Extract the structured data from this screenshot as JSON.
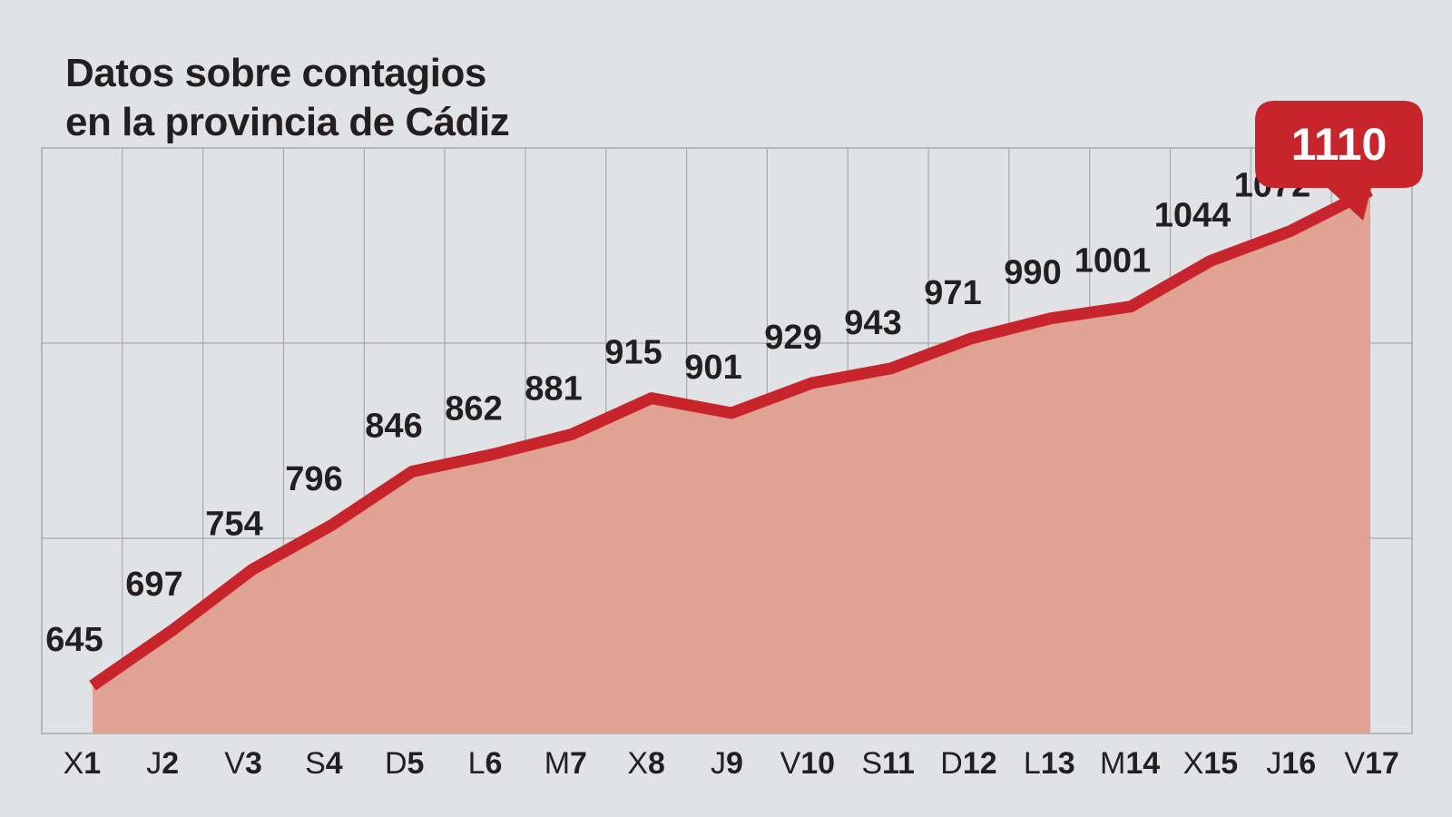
{
  "chart_data": {
    "type": "area",
    "title_lines": [
      "Datos sobre contagios",
      "en la provincia de Cádiz"
    ],
    "categories": [
      {
        "prefix": "X",
        "num": "1"
      },
      {
        "prefix": "J",
        "num": "2"
      },
      {
        "prefix": "V",
        "num": "3"
      },
      {
        "prefix": "S",
        "num": "4"
      },
      {
        "prefix": "D",
        "num": "5"
      },
      {
        "prefix": "L",
        "num": "6"
      },
      {
        "prefix": "M",
        "num": "7"
      },
      {
        "prefix": "X",
        "num": "8"
      },
      {
        "prefix": "J",
        "num": "9"
      },
      {
        "prefix": "V",
        "num": "10"
      },
      {
        "prefix": "S",
        "num": "11"
      },
      {
        "prefix": "D",
        "num": "12"
      },
      {
        "prefix": "L",
        "num": "13"
      },
      {
        "prefix": "M",
        "num": "14"
      },
      {
        "prefix": "X",
        "num": "15"
      },
      {
        "prefix": "J",
        "num": "16"
      },
      {
        "prefix": "V",
        "num": "17"
      }
    ],
    "values": [
      645,
      697,
      754,
      796,
      846,
      862,
      881,
      915,
      901,
      929,
      943,
      971,
      990,
      1001,
      1044,
      1072,
      1110
    ],
    "highlight": {
      "index": 16,
      "label": "1110"
    },
    "ylim": [
      600,
      1150
    ],
    "grid": true,
    "legend": "none",
    "colors": {
      "background": "#e1e2e5",
      "line": "#c8242c",
      "area": "#e0a293",
      "grid": "#a9a9ab",
      "text": "#231f20",
      "callout": "#c8242c",
      "callout_text": "#ffffff"
    }
  }
}
